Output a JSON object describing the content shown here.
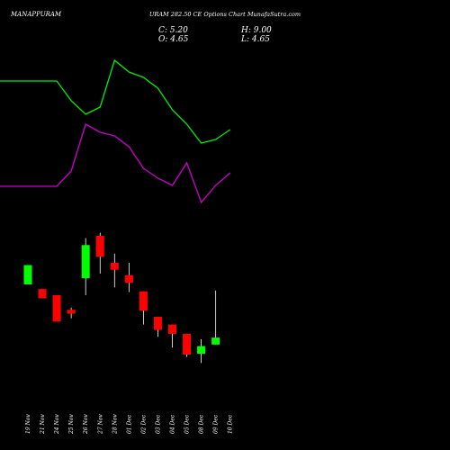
{
  "header": {
    "symbol": "MANAPPURAM",
    "title": "URAM 282.50 CE Options Chart MunafaSutra.com",
    "open": "O: 4.65",
    "close": "C: 5.20",
    "high": "H: 9.00",
    "low": "L: 4.65"
  },
  "colors": {
    "background": "#000000",
    "bull": "#00ff00",
    "bear": "#ff0000",
    "ma_fast": "#00ee00",
    "ma_slow": "#cc00cc",
    "text": "#ffffff",
    "wick": "#ffffff"
  },
  "chart_data": {
    "type": "candlestick",
    "categories": [
      "19 Nov",
      "21 Nov",
      "24 Nov",
      "25 Nov",
      "26 Nov",
      "27 Nov",
      "28 Nov",
      "01 Dec",
      "02 Dec",
      "03 Dec",
      "04 Dec",
      "05 Dec",
      "08 Dec",
      "09 Dec",
      "10 Dec"
    ],
    "price_range": [
      2.5,
      23.5
    ],
    "candles": [
      {
        "date": "19 Nov",
        "open": 15.8,
        "close": 18.3,
        "high": 18.3,
        "low": 15.8
      },
      {
        "date": "21 Nov",
        "open": 15.2,
        "close": 14.0,
        "high": 15.2,
        "low": 14.0
      },
      {
        "date": "24 Nov",
        "open": 14.4,
        "close": 11.0,
        "high": 14.4,
        "low": 11.0
      },
      {
        "date": "25 Nov",
        "open": 12.5,
        "close": 12.0,
        "high": 12.8,
        "low": 11.4
      },
      {
        "date": "26 Nov",
        "open": 16.6,
        "close": 20.9,
        "high": 21.8,
        "low": 14.4
      },
      {
        "date": "27 Nov",
        "open": 22.1,
        "close": 19.4,
        "high": 22.5,
        "low": 17.2
      },
      {
        "date": "28 Nov",
        "open": 18.6,
        "close": 17.7,
        "high": 19.8,
        "low": 15.4
      },
      {
        "date": "01 Dec",
        "open": 17.0,
        "close": 16.0,
        "high": 18.6,
        "low": 14.8
      },
      {
        "date": "02 Dec",
        "open": 14.9,
        "close": 12.4,
        "high": 14.9,
        "low": 10.6
      },
      {
        "date": "03 Dec",
        "open": 11.6,
        "close": 9.9,
        "high": 11.6,
        "low": 9.0
      },
      {
        "date": "04 Dec",
        "open": 10.6,
        "close": 9.4,
        "high": 10.6,
        "low": 7.6
      },
      {
        "date": "05 Dec",
        "open": 9.4,
        "close": 6.7,
        "high": 9.4,
        "low": 6.4
      },
      {
        "date": "08 Dec",
        "open": 6.8,
        "close": 7.8,
        "high": 8.7,
        "low": 5.6
      },
      {
        "date": "09 Dec",
        "open": 8.0,
        "close": 8.9,
        "high": 15.0,
        "low": 8.0
      },
      {
        "date": "10 Dec",
        "open": null,
        "close": null,
        "high": null,
        "low": null
      }
    ],
    "moving_averages": [
      {
        "color": "ma_fast",
        "values": [
          null,
          23.0,
          23.0,
          20.8,
          19.3,
          20.1,
          25.3,
          24.0,
          23.4,
          22.2,
          19.8,
          18.2,
          16.1,
          16.5,
          17.6
        ]
      },
      {
        "color": "ma_slow",
        "values": [
          null,
          11.3,
          11.3,
          13.0,
          18.2,
          17.3,
          16.9,
          15.7,
          13.3,
          12.2,
          11.4,
          13.9,
          9.5,
          11.4,
          12.8
        ]
      }
    ]
  }
}
